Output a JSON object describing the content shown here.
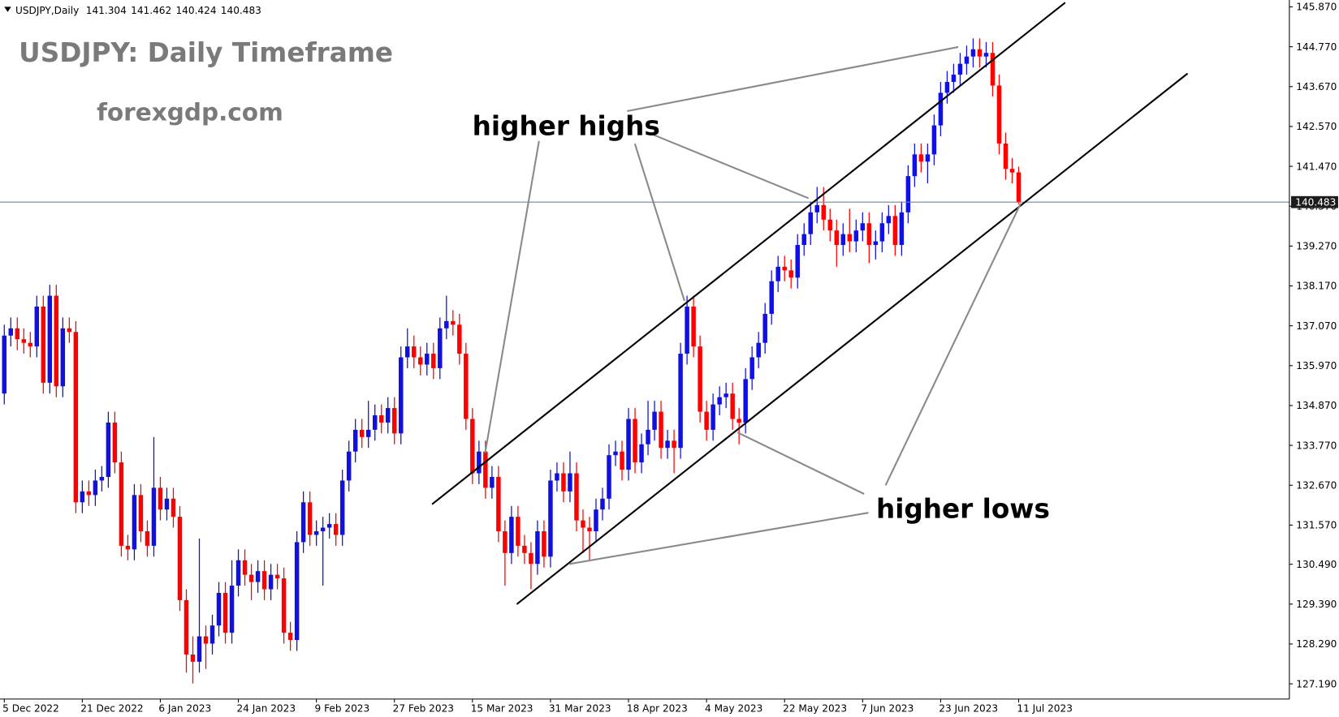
{
  "chart_data": {
    "type": "candlestick",
    "symbol_label": "USDJPY,Daily",
    "title": "USDJPY: Daily Timeframe",
    "subtitle": "forexgdp.com",
    "annotations": [
      "higher highs",
      "higher lows"
    ],
    "up_color": "#1010e0",
    "down_color": "#ff0000",
    "price_line_color": "#6a86a8",
    "ylim": [
      126.77,
      146.06
    ],
    "yticks": [
      {
        "value": 145.87,
        "label": "145.870"
      },
      {
        "value": 144.77,
        "label": "144.770"
      },
      {
        "value": 143.67,
        "label": "143.670"
      },
      {
        "value": 142.57,
        "label": "142.570"
      },
      {
        "value": 141.47,
        "label": "141.470"
      },
      {
        "value": 140.37,
        "label": "140.370"
      },
      {
        "value": 139.27,
        "label": "139.270"
      },
      {
        "value": 138.17,
        "label": "138.170"
      },
      {
        "value": 137.07,
        "label": "137.070"
      },
      {
        "value": 135.97,
        "label": "135.970"
      },
      {
        "value": 134.87,
        "label": "134.870"
      },
      {
        "value": 133.77,
        "label": "133.770"
      },
      {
        "value": 132.67,
        "label": "132.670"
      },
      {
        "value": 131.57,
        "label": "131.570"
      },
      {
        "value": 130.49,
        "label": "130.490"
      },
      {
        "value": 129.39,
        "label": "129.390"
      },
      {
        "value": 128.29,
        "label": "128.290"
      },
      {
        "value": 127.19,
        "label": "127.190"
      }
    ],
    "categories": [
      "5 Dec 2022",
      null,
      null,
      null,
      null,
      null,
      null,
      null,
      null,
      null,
      null,
      null,
      "21 Dec 2022",
      null,
      null,
      null,
      null,
      null,
      null,
      null,
      null,
      null,
      null,
      null,
      "6 Jan 2023",
      null,
      null,
      null,
      null,
      null,
      null,
      null,
      null,
      null,
      null,
      null,
      "24 Jan 2023",
      null,
      null,
      null,
      null,
      null,
      null,
      null,
      null,
      null,
      null,
      null,
      "9 Feb 2023",
      null,
      null,
      null,
      null,
      null,
      null,
      null,
      null,
      null,
      null,
      null,
      "27 Feb 2023",
      null,
      null,
      null,
      null,
      null,
      null,
      null,
      null,
      null,
      null,
      null,
      "15 Mar 2023",
      null,
      null,
      null,
      null,
      null,
      null,
      null,
      null,
      null,
      null,
      null,
      "31 Mar 2023",
      null,
      null,
      null,
      null,
      null,
      null,
      null,
      null,
      null,
      null,
      null,
      "18 Apr 2023",
      null,
      null,
      null,
      null,
      null,
      null,
      null,
      null,
      null,
      null,
      null,
      "4 May 2023",
      null,
      null,
      null,
      null,
      null,
      null,
      null,
      null,
      null,
      null,
      null,
      "22 May 2023",
      null,
      null,
      null,
      null,
      null,
      null,
      null,
      null,
      null,
      null,
      null,
      "7 Jun 2023",
      null,
      null,
      null,
      null,
      null,
      null,
      null,
      null,
      null,
      null,
      null,
      "23 Jun 2023",
      null,
      null,
      null,
      null,
      null,
      null,
      null,
      null,
      null,
      null,
      null,
      "11 Jul 2023"
    ],
    "ohlc": [
      [
        135.2,
        137.1,
        134.9,
        136.8
      ],
      [
        136.8,
        137.3,
        136.5,
        137.0
      ],
      [
        137.0,
        137.3,
        136.4,
        136.7
      ],
      [
        136.7,
        137.0,
        136.3,
        136.6
      ],
      [
        136.6,
        136.9,
        136.2,
        136.5
      ],
      [
        136.5,
        137.9,
        136.2,
        137.6
      ],
      [
        137.6,
        137.9,
        135.2,
        135.5
      ],
      [
        135.5,
        138.2,
        135.2,
        137.9
      ],
      [
        137.9,
        138.2,
        135.1,
        135.4
      ],
      [
        135.4,
        137.3,
        135.1,
        137.0
      ],
      [
        137.0,
        137.3,
        136.6,
        136.9
      ],
      [
        136.9,
        137.2,
        131.9,
        132.2
      ],
      [
        132.2,
        132.8,
        131.9,
        132.5
      ],
      [
        132.5,
        132.8,
        132.1,
        132.4
      ],
      [
        132.4,
        133.1,
        132.1,
        132.8
      ],
      [
        132.8,
        133.2,
        132.5,
        132.9
      ],
      [
        132.9,
        134.7,
        132.6,
        134.4
      ],
      [
        134.4,
        134.7,
        133.0,
        133.3
      ],
      [
        133.3,
        133.6,
        130.7,
        131.0
      ],
      [
        131.0,
        131.3,
        130.6,
        130.9
      ],
      [
        130.9,
        132.7,
        130.6,
        132.4
      ],
      [
        132.4,
        132.7,
        131.1,
        131.4
      ],
      [
        131.4,
        131.7,
        130.7,
        131.0
      ],
      [
        131.0,
        134.0,
        130.7,
        132.6
      ],
      [
        132.6,
        132.9,
        131.7,
        132.0
      ],
      [
        132.0,
        132.6,
        131.7,
        132.3
      ],
      [
        132.3,
        132.6,
        131.5,
        131.8
      ],
      [
        131.8,
        132.1,
        129.2,
        129.5
      ],
      [
        129.5,
        129.8,
        127.5,
        128.0
      ],
      [
        128.0,
        128.5,
        127.2,
        127.8
      ],
      [
        127.8,
        131.2,
        127.5,
        128.5
      ],
      [
        128.5,
        128.8,
        127.6,
        128.3
      ],
      [
        128.3,
        129.1,
        128.0,
        128.8
      ],
      [
        128.8,
        130.0,
        128.5,
        129.7
      ],
      [
        129.7,
        130.0,
        128.3,
        128.6
      ],
      [
        128.6,
        130.6,
        128.3,
        129.9
      ],
      [
        129.9,
        130.9,
        129.6,
        130.6
      ],
      [
        130.6,
        130.9,
        129.9,
        130.2
      ],
      [
        130.2,
        130.5,
        129.5,
        130.0
      ],
      [
        130.0,
        130.6,
        129.7,
        130.3
      ],
      [
        130.3,
        130.6,
        129.5,
        129.8
      ],
      [
        129.8,
        130.5,
        129.5,
        130.2
      ],
      [
        130.2,
        130.5,
        129.8,
        130.1
      ],
      [
        130.1,
        130.4,
        128.3,
        128.6
      ],
      [
        128.6,
        128.9,
        128.1,
        128.4
      ],
      [
        128.4,
        131.4,
        128.1,
        131.1
      ],
      [
        131.1,
        132.5,
        130.8,
        132.2
      ],
      [
        132.2,
        132.5,
        131.0,
        131.3
      ],
      [
        131.3,
        131.7,
        131.0,
        131.4
      ],
      [
        131.4,
        131.8,
        129.9,
        131.5
      ],
      [
        131.5,
        131.9,
        131.2,
        131.6
      ],
      [
        131.6,
        131.9,
        131.0,
        131.3
      ],
      [
        131.3,
        133.1,
        131.0,
        132.8
      ],
      [
        132.8,
        133.9,
        132.5,
        133.6
      ],
      [
        133.6,
        134.5,
        133.3,
        134.2
      ],
      [
        134.2,
        134.5,
        133.7,
        134.0
      ],
      [
        134.0,
        135.0,
        133.7,
        134.2
      ],
      [
        134.2,
        134.9,
        133.9,
        134.6
      ],
      [
        134.6,
        134.9,
        134.1,
        134.4
      ],
      [
        134.4,
        135.1,
        134.1,
        134.8
      ],
      [
        134.8,
        135.1,
        133.8,
        134.1
      ],
      [
        134.1,
        136.5,
        133.8,
        136.2
      ],
      [
        136.2,
        137.0,
        135.9,
        136.5
      ],
      [
        136.5,
        136.8,
        135.9,
        136.2
      ],
      [
        136.2,
        136.5,
        135.7,
        136.0
      ],
      [
        136.0,
        136.6,
        135.7,
        136.3
      ],
      [
        136.3,
        136.6,
        135.6,
        135.9
      ],
      [
        135.9,
        137.3,
        135.6,
        137.0
      ],
      [
        137.0,
        137.9,
        136.7,
        137.2
      ],
      [
        137.2,
        137.5,
        136.8,
        137.1
      ],
      [
        137.1,
        137.4,
        136.0,
        136.3
      ],
      [
        136.3,
        136.6,
        134.2,
        134.5
      ],
      [
        134.5,
        134.8,
        132.7,
        133.0
      ],
      [
        133.0,
        133.9,
        132.7,
        133.6
      ],
      [
        133.6,
        133.9,
        132.3,
        132.6
      ],
      [
        132.6,
        133.2,
        132.3,
        132.9
      ],
      [
        132.9,
        133.2,
        131.1,
        131.4
      ],
      [
        131.4,
        131.7,
        129.9,
        130.8
      ],
      [
        130.8,
        132.1,
        130.5,
        131.8
      ],
      [
        131.8,
        132.1,
        130.7,
        131.0
      ],
      [
        131.0,
        131.3,
        130.5,
        130.8
      ],
      [
        130.8,
        131.1,
        129.8,
        130.5
      ],
      [
        130.5,
        131.7,
        130.2,
        131.4
      ],
      [
        131.4,
        131.7,
        130.4,
        130.7
      ],
      [
        130.7,
        133.1,
        130.4,
        132.8
      ],
      [
        132.8,
        133.3,
        132.5,
        133.0
      ],
      [
        133.0,
        133.3,
        132.2,
        132.5
      ],
      [
        132.5,
        133.6,
        132.2,
        133.0
      ],
      [
        133.0,
        133.3,
        131.4,
        131.7
      ],
      [
        131.7,
        132.0,
        130.8,
        131.5
      ],
      [
        131.5,
        131.8,
        130.6,
        131.4
      ],
      [
        131.4,
        132.3,
        131.1,
        132.0
      ],
      [
        132.0,
        132.6,
        131.7,
        132.3
      ],
      [
        132.3,
        133.8,
        132.0,
        133.5
      ],
      [
        133.5,
        133.9,
        133.2,
        133.6
      ],
      [
        133.6,
        133.9,
        132.8,
        133.1
      ],
      [
        133.1,
        134.8,
        132.8,
        134.5
      ],
      [
        134.5,
        134.8,
        133.0,
        133.3
      ],
      [
        133.3,
        134.1,
        133.0,
        133.8
      ],
      [
        133.8,
        135.0,
        133.5,
        134.2
      ],
      [
        134.2,
        135.0,
        133.9,
        134.7
      ],
      [
        134.7,
        135.0,
        133.4,
        133.7
      ],
      [
        133.7,
        134.2,
        133.4,
        133.9
      ],
      [
        133.9,
        134.2,
        133.0,
        133.7
      ],
      [
        133.7,
        136.6,
        133.4,
        136.3
      ],
      [
        136.3,
        137.9,
        136.0,
        137.6
      ],
      [
        137.6,
        137.9,
        136.2,
        136.5
      ],
      [
        136.5,
        136.8,
        134.4,
        134.7
      ],
      [
        134.7,
        135.0,
        133.9,
        134.2
      ],
      [
        134.2,
        135.2,
        133.9,
        134.9
      ],
      [
        134.9,
        135.4,
        134.6,
        135.1
      ],
      [
        135.1,
        135.5,
        134.8,
        135.2
      ],
      [
        135.2,
        135.5,
        134.2,
        134.5
      ],
      [
        134.5,
        134.8,
        133.8,
        134.4
      ],
      [
        134.4,
        135.9,
        134.1,
        135.6
      ],
      [
        135.6,
        136.5,
        135.3,
        136.2
      ],
      [
        136.2,
        136.9,
        135.9,
        136.6
      ],
      [
        136.6,
        137.7,
        136.3,
        137.4
      ],
      [
        137.4,
        138.6,
        137.1,
        138.3
      ],
      [
        138.3,
        139.0,
        138.0,
        138.7
      ],
      [
        138.7,
        139.0,
        138.3,
        138.6
      ],
      [
        138.6,
        138.9,
        138.1,
        138.4
      ],
      [
        138.4,
        139.6,
        138.1,
        139.3
      ],
      [
        139.3,
        139.9,
        139.0,
        139.6
      ],
      [
        139.6,
        140.5,
        139.3,
        140.2
      ],
      [
        140.2,
        140.9,
        139.9,
        140.4
      ],
      [
        140.4,
        140.9,
        139.7,
        140.0
      ],
      [
        140.0,
        140.3,
        139.4,
        139.7
      ],
      [
        139.7,
        140.0,
        138.7,
        139.3
      ],
      [
        139.3,
        139.9,
        139.0,
        139.6
      ],
      [
        139.6,
        140.3,
        139.1,
        139.4
      ],
      [
        139.4,
        140.0,
        139.1,
        139.7
      ],
      [
        139.7,
        140.2,
        139.4,
        139.9
      ],
      [
        139.9,
        140.2,
        138.8,
        139.3
      ],
      [
        139.3,
        139.7,
        138.9,
        139.4
      ],
      [
        139.4,
        140.2,
        139.1,
        139.9
      ],
      [
        139.9,
        140.4,
        139.6,
        140.1
      ],
      [
        140.1,
        140.4,
        139.0,
        139.3
      ],
      [
        139.3,
        140.5,
        139.0,
        140.2
      ],
      [
        140.2,
        141.5,
        139.9,
        141.2
      ],
      [
        141.2,
        142.1,
        140.9,
        141.8
      ],
      [
        141.8,
        142.1,
        141.3,
        141.6
      ],
      [
        141.6,
        142.1,
        141.0,
        141.8
      ],
      [
        141.8,
        142.9,
        141.5,
        142.6
      ],
      [
        142.6,
        143.8,
        142.3,
        143.5
      ],
      [
        143.5,
        144.1,
        143.2,
        143.8
      ],
      [
        143.8,
        144.3,
        143.5,
        144.0
      ],
      [
        144.0,
        144.6,
        143.7,
        144.3
      ],
      [
        144.3,
        144.8,
        144.0,
        144.5
      ],
      [
        144.5,
        145.0,
        144.2,
        144.7
      ],
      [
        144.7,
        145.0,
        144.2,
        144.5
      ],
      [
        144.5,
        144.9,
        144.2,
        144.6
      ],
      [
        144.6,
        144.9,
        143.4,
        143.7
      ],
      [
        143.7,
        144.0,
        141.8,
        142.1
      ],
      [
        142.1,
        142.4,
        141.1,
        141.4
      ],
      [
        141.4,
        141.7,
        141.0,
        141.3
      ],
      [
        141.304,
        141.462,
        140.424,
        140.483
      ]
    ]
  }
}
